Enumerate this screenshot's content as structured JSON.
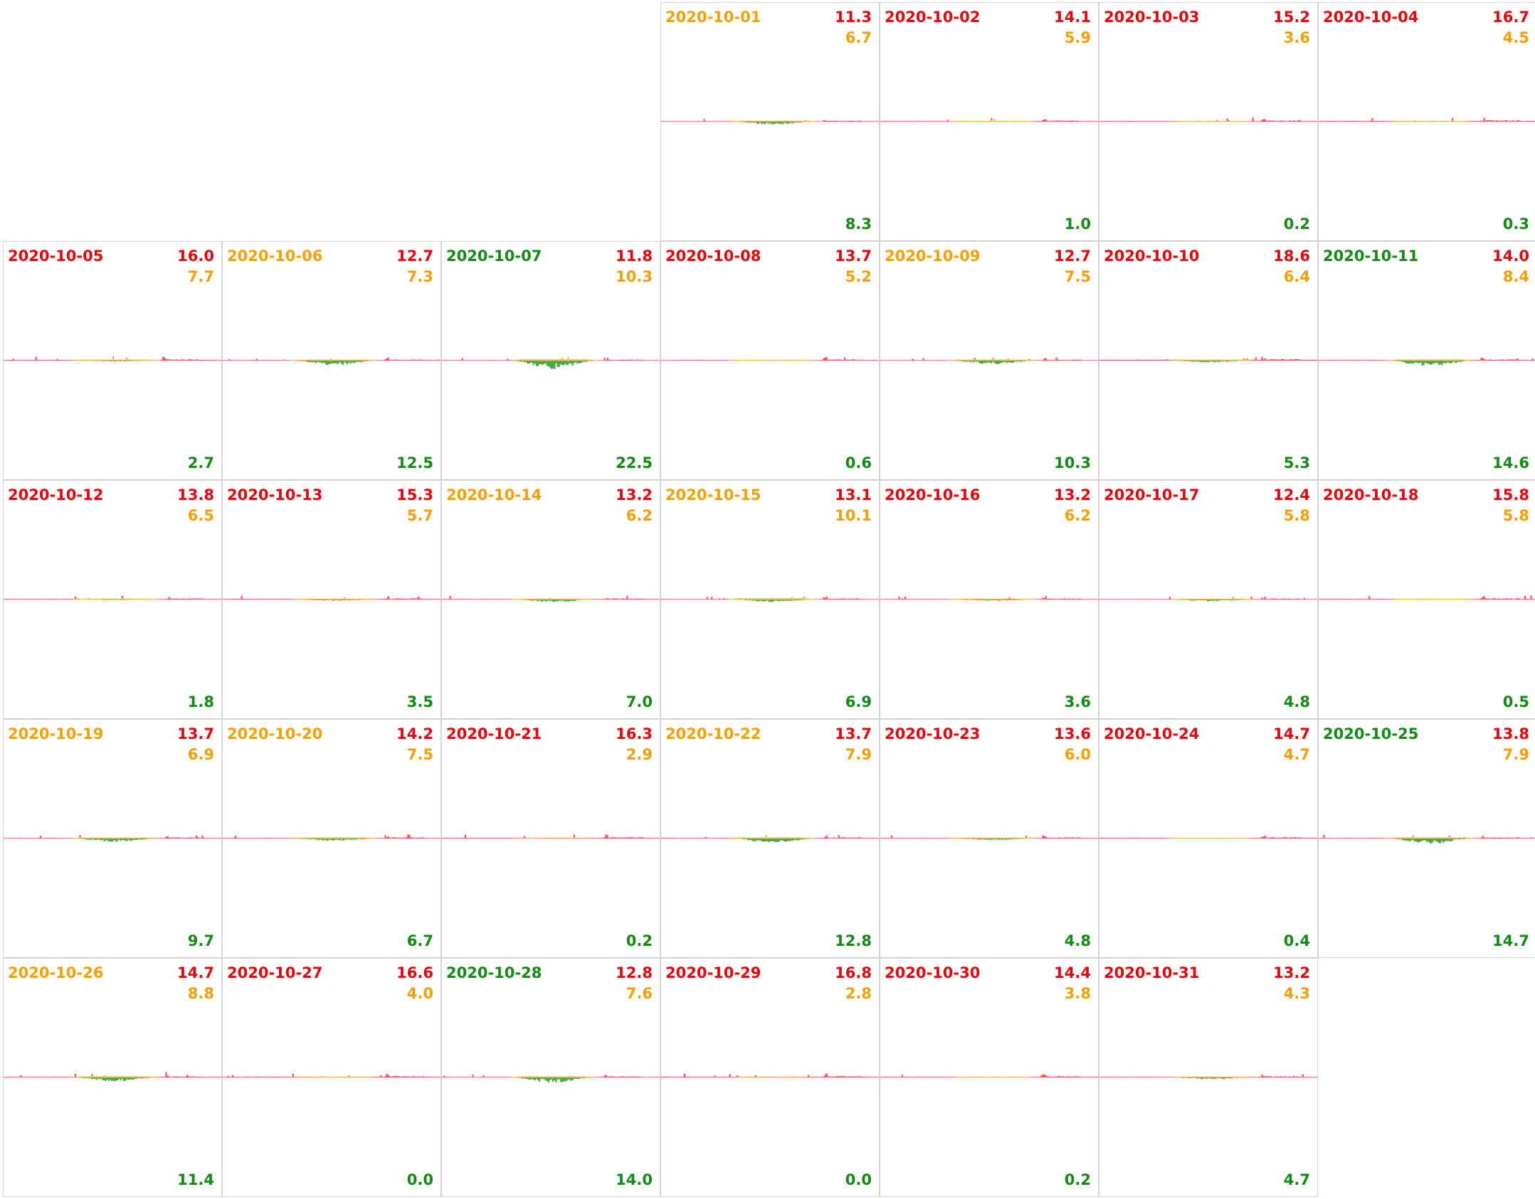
{
  "colors": {
    "consumption": "#ff5050",
    "self_consumption": "#ffbf47",
    "production": "#4aa84a",
    "label_red": "#e8000b",
    "label_orange": "#f5a000",
    "label_green": "#138a13"
  },
  "chart_data": {
    "type": "area",
    "layout": "calendar-grid",
    "month": "2020-10",
    "columns": 7,
    "first_weekday_column": 3,
    "units": "kWh",
    "days": [
      {
        "date": "2020-10-01",
        "consumption": 11.3,
        "self_consumption": 6.7,
        "production": 8.3,
        "date_color": "orange"
      },
      {
        "date": "2020-10-02",
        "consumption": 14.1,
        "self_consumption": 5.9,
        "production": 1.0,
        "date_color": "red"
      },
      {
        "date": "2020-10-03",
        "consumption": 15.2,
        "self_consumption": 3.6,
        "production": 0.2,
        "date_color": "red"
      },
      {
        "date": "2020-10-04",
        "consumption": 16.7,
        "self_consumption": 4.5,
        "production": 0.3,
        "date_color": "red"
      },
      {
        "date": "2020-10-05",
        "consumption": 16.0,
        "self_consumption": 7.7,
        "production": 2.7,
        "date_color": "red"
      },
      {
        "date": "2020-10-06",
        "consumption": 12.7,
        "self_consumption": 7.3,
        "production": 12.5,
        "date_color": "orange"
      },
      {
        "date": "2020-10-07",
        "consumption": 11.8,
        "self_consumption": 10.3,
        "production": 22.5,
        "date_color": "green"
      },
      {
        "date": "2020-10-08",
        "consumption": 13.7,
        "self_consumption": 5.2,
        "production": 0.6,
        "date_color": "red"
      },
      {
        "date": "2020-10-09",
        "consumption": 12.7,
        "self_consumption": 7.5,
        "production": 10.3,
        "date_color": "orange"
      },
      {
        "date": "2020-10-10",
        "consumption": 18.6,
        "self_consumption": 6.4,
        "production": 5.3,
        "date_color": "red"
      },
      {
        "date": "2020-10-11",
        "consumption": 14.0,
        "self_consumption": 8.4,
        "production": 14.6,
        "date_color": "green"
      },
      {
        "date": "2020-10-12",
        "consumption": 13.8,
        "self_consumption": 6.5,
        "production": 1.8,
        "date_color": "red"
      },
      {
        "date": "2020-10-13",
        "consumption": 15.3,
        "self_consumption": 5.7,
        "production": 3.5,
        "date_color": "red"
      },
      {
        "date": "2020-10-14",
        "consumption": 13.2,
        "self_consumption": 6.2,
        "production": 7.0,
        "date_color": "orange"
      },
      {
        "date": "2020-10-15",
        "consumption": 13.1,
        "self_consumption": 10.1,
        "production": 6.9,
        "date_color": "orange"
      },
      {
        "date": "2020-10-16",
        "consumption": 13.2,
        "self_consumption": 6.2,
        "production": 3.6,
        "date_color": "red"
      },
      {
        "date": "2020-10-17",
        "consumption": 12.4,
        "self_consumption": 5.8,
        "production": 4.8,
        "date_color": "red"
      },
      {
        "date": "2020-10-18",
        "consumption": 15.8,
        "self_consumption": 5.8,
        "production": 0.5,
        "date_color": "red"
      },
      {
        "date": "2020-10-19",
        "consumption": 13.7,
        "self_consumption": 6.9,
        "production": 9.7,
        "date_color": "orange"
      },
      {
        "date": "2020-10-20",
        "consumption": 14.2,
        "self_consumption": 7.5,
        "production": 6.7,
        "date_color": "orange"
      },
      {
        "date": "2020-10-21",
        "consumption": 16.3,
        "self_consumption": 2.9,
        "production": 0.2,
        "date_color": "red"
      },
      {
        "date": "2020-10-22",
        "consumption": 13.7,
        "self_consumption": 7.9,
        "production": 12.8,
        "date_color": "orange"
      },
      {
        "date": "2020-10-23",
        "consumption": 13.6,
        "self_consumption": 6.0,
        "production": 4.8,
        "date_color": "red"
      },
      {
        "date": "2020-10-24",
        "consumption": 14.7,
        "self_consumption": 4.7,
        "production": 0.4,
        "date_color": "red"
      },
      {
        "date": "2020-10-25",
        "consumption": 13.8,
        "self_consumption": 7.9,
        "production": 14.7,
        "date_color": "green"
      },
      {
        "date": "2020-10-26",
        "consumption": 14.7,
        "self_consumption": 8.8,
        "production": 11.4,
        "date_color": "orange"
      },
      {
        "date": "2020-10-27",
        "consumption": 16.6,
        "self_consumption": 4.0,
        "production": 0.0,
        "date_color": "red"
      },
      {
        "date": "2020-10-28",
        "consumption": 12.8,
        "self_consumption": 7.6,
        "production": 14.0,
        "date_color": "green"
      },
      {
        "date": "2020-10-29",
        "consumption": 16.8,
        "self_consumption": 2.8,
        "production": 0.0,
        "date_color": "red"
      },
      {
        "date": "2020-10-30",
        "consumption": 14.4,
        "self_consumption": 3.8,
        "production": 0.2,
        "date_color": "red"
      },
      {
        "date": "2020-10-31",
        "consumption": 13.2,
        "self_consumption": 4.3,
        "production": 4.7,
        "date_color": "red"
      }
    ]
  }
}
